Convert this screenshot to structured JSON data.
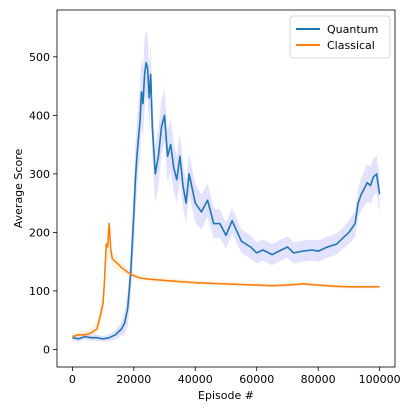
{
  "chart_data": {
    "type": "line",
    "xlabel": "Episode #",
    "ylabel": "Average Score",
    "xlim": [
      -5000,
      105000
    ],
    "ylim": [
      -30,
      580
    ],
    "xticks": [
      0,
      20000,
      40000,
      60000,
      80000,
      100000
    ],
    "yticks": [
      0,
      100,
      200,
      300,
      400,
      500
    ],
    "grid": false,
    "legend_position": "top-right",
    "series": [
      {
        "name": "Quantum",
        "color": "#1f77b4",
        "band_color": "#7b7bff",
        "x": [
          0,
          2000,
          4000,
          6000,
          8000,
          10000,
          12000,
          14000,
          16000,
          17000,
          18000,
          19000,
          20000,
          20500,
          21000,
          21500,
          22000,
          22500,
          23000,
          23500,
          24000,
          24500,
          25000,
          25500,
          26000,
          26500,
          27000,
          28000,
          29000,
          30000,
          31000,
          32000,
          33000,
          34000,
          35000,
          36000,
          37000,
          38000,
          40000,
          42000,
          44000,
          46000,
          48000,
          50000,
          52000,
          55000,
          58000,
          60000,
          62000,
          65000,
          68000,
          70000,
          72000,
          75000,
          78000,
          80000,
          83000,
          86000,
          88000,
          90000,
          92000,
          93000,
          94000,
          95000,
          96000,
          97000,
          98000,
          99000,
          100000
        ],
        "y": [
          20,
          18,
          22,
          20,
          20,
          18,
          20,
          25,
          35,
          45,
          70,
          130,
          230,
          290,
          330,
          360,
          390,
          440,
          420,
          470,
          490,
          480,
          430,
          470,
          380,
          340,
          300,
          330,
          380,
          400,
          330,
          350,
          310,
          290,
          330,
          280,
          250,
          300,
          250,
          235,
          255,
          215,
          215,
          195,
          220,
          185,
          175,
          165,
          170,
          162,
          170,
          175,
          165,
          168,
          170,
          168,
          175,
          180,
          190,
          200,
          215,
          250,
          265,
          275,
          285,
          280,
          295,
          300,
          265
        ],
        "band": [
          5,
          5,
          5,
          5,
          5,
          5,
          6,
          8,
          12,
          20,
          30,
          40,
          55,
          60,
          60,
          60,
          60,
          60,
          60,
          60,
          55,
          55,
          55,
          55,
          50,
          50,
          50,
          50,
          48,
          45,
          45,
          45,
          42,
          40,
          40,
          38,
          36,
          35,
          33,
          30,
          28,
          26,
          24,
          22,
          22,
          20,
          20,
          18,
          18,
          18,
          18,
          18,
          18,
          18,
          18,
          18,
          18,
          18,
          18,
          20,
          22,
          25,
          28,
          30,
          32,
          32,
          32,
          32,
          32
        ]
      },
      {
        "name": "Classical",
        "color": "#ff7f0e",
        "band_color": "#ffc98a",
        "x": [
          0,
          2000,
          4000,
          6000,
          8000,
          9000,
          10000,
          10500,
          11000,
          11500,
          12000,
          12500,
          13000,
          14000,
          15000,
          16000,
          18000,
          20000,
          22000,
          25000,
          30000,
          35000,
          40000,
          45000,
          50000,
          55000,
          60000,
          65000,
          70000,
          75000,
          80000,
          85000,
          90000,
          95000,
          100000
        ],
        "y": [
          22,
          25,
          25,
          28,
          35,
          55,
          80,
          120,
          180,
          175,
          215,
          170,
          155,
          150,
          145,
          140,
          132,
          126,
          122,
          120,
          118,
          116,
          114,
          113,
          112,
          111,
          110,
          109,
          110,
          112,
          110,
          108,
          107,
          107,
          107
        ],
        "band": [
          5,
          5,
          6,
          8,
          10,
          15,
          20,
          25,
          30,
          25,
          25,
          18,
          15,
          12,
          10,
          8,
          6,
          5,
          5,
          4,
          4,
          4,
          4,
          3,
          3,
          3,
          3,
          3,
          3,
          3,
          3,
          3,
          3,
          3,
          3
        ]
      }
    ]
  }
}
